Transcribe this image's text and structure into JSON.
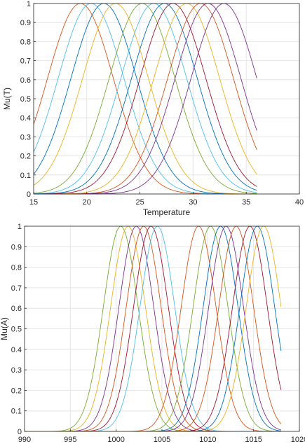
{
  "chart_data": [
    {
      "type": "line",
      "xlabel": "Temperature",
      "ylabel": "Mu(T)",
      "xlim": [
        15,
        40
      ],
      "ylim": [
        0,
        1
      ],
      "xticks": [
        "15",
        "20",
        "25",
        "30",
        "35",
        "40"
      ],
      "yticks": [
        "0",
        "0.1",
        "0.2",
        "0.3",
        "0.4",
        "0.5",
        "0.6",
        "0.7",
        "0.8",
        "0.9",
        "1"
      ],
      "grid": true,
      "x_range_of_curves": [
        15,
        36
      ],
      "curve_shape": "gaussian",
      "series": [
        {
          "center": 19.4,
          "sigma": 3.1,
          "color": "#d95319"
        },
        {
          "center": 20.4,
          "sigma": 3.1,
          "color": "#4dbeee"
        },
        {
          "center": 21.6,
          "sigma": 3.1,
          "color": "#0072bd"
        },
        {
          "center": 22.7,
          "sigma": 3.1,
          "color": "#edb120"
        },
        {
          "center": 25.2,
          "sigma": 3.1,
          "color": "#77ac30"
        },
        {
          "center": 26.3,
          "sigma": 3.1,
          "color": "#4dbeee"
        },
        {
          "center": 27.3,
          "sigma": 3.1,
          "color": "#0072bd"
        },
        {
          "center": 28.1,
          "sigma": 3.1,
          "color": "#a2142f"
        },
        {
          "center": 29.4,
          "sigma": 3.1,
          "color": "#edb120"
        },
        {
          "center": 30.7,
          "sigma": 3.1,
          "color": "#d95319"
        },
        {
          "center": 31.4,
          "sigma": 3.1,
          "color": "#7e2f8e"
        },
        {
          "center": 32.9,
          "sigma": 3.1,
          "color": "#7e2f8e"
        }
      ]
    },
    {
      "type": "line",
      "xlabel": "",
      "ylabel": "Mu(A)",
      "xlim": [
        990,
        1020
      ],
      "ylim": [
        0,
        1
      ],
      "xticks": [
        "990",
        "995",
        "1000",
        "1005",
        "1010",
        "1015",
        "1020"
      ],
      "yticks": [
        "0",
        "0.1",
        "0.2",
        "0.3",
        "0.4",
        "0.5",
        "0.6",
        "0.7",
        "0.8",
        "0.9",
        "1"
      ],
      "grid": true,
      "x_range_of_curves": [
        990,
        1018
      ],
      "curve_shape": "gaussian",
      "series": [
        {
          "center": 1000.5,
          "sigma": 1.9,
          "color": "#77ac30"
        },
        {
          "center": 1001.3,
          "sigma": 1.9,
          "color": "#edb120"
        },
        {
          "center": 1002.2,
          "sigma": 1.9,
          "color": "#7e2f8e"
        },
        {
          "center": 1003.0,
          "sigma": 1.9,
          "color": "#d95319"
        },
        {
          "center": 1003.8,
          "sigma": 1.9,
          "color": "#a2142f"
        },
        {
          "center": 1004.5,
          "sigma": 1.9,
          "color": "#4dbeee"
        },
        {
          "center": 1009.0,
          "sigma": 1.9,
          "color": "#d95319"
        },
        {
          "center": 1010.3,
          "sigma": 1.9,
          "color": "#77ac30"
        },
        {
          "center": 1011.4,
          "sigma": 1.9,
          "color": "#0072bd"
        },
        {
          "center": 1012.0,
          "sigma": 1.9,
          "color": "#7e2f8e"
        },
        {
          "center": 1013.1,
          "sigma": 1.9,
          "color": "#d95319"
        },
        {
          "center": 1014.6,
          "sigma": 1.9,
          "color": "#a2142f"
        },
        {
          "center": 1015.4,
          "sigma": 1.9,
          "color": "#0072bd"
        },
        {
          "center": 1016.1,
          "sigma": 1.9,
          "color": "#edb120"
        }
      ]
    }
  ]
}
